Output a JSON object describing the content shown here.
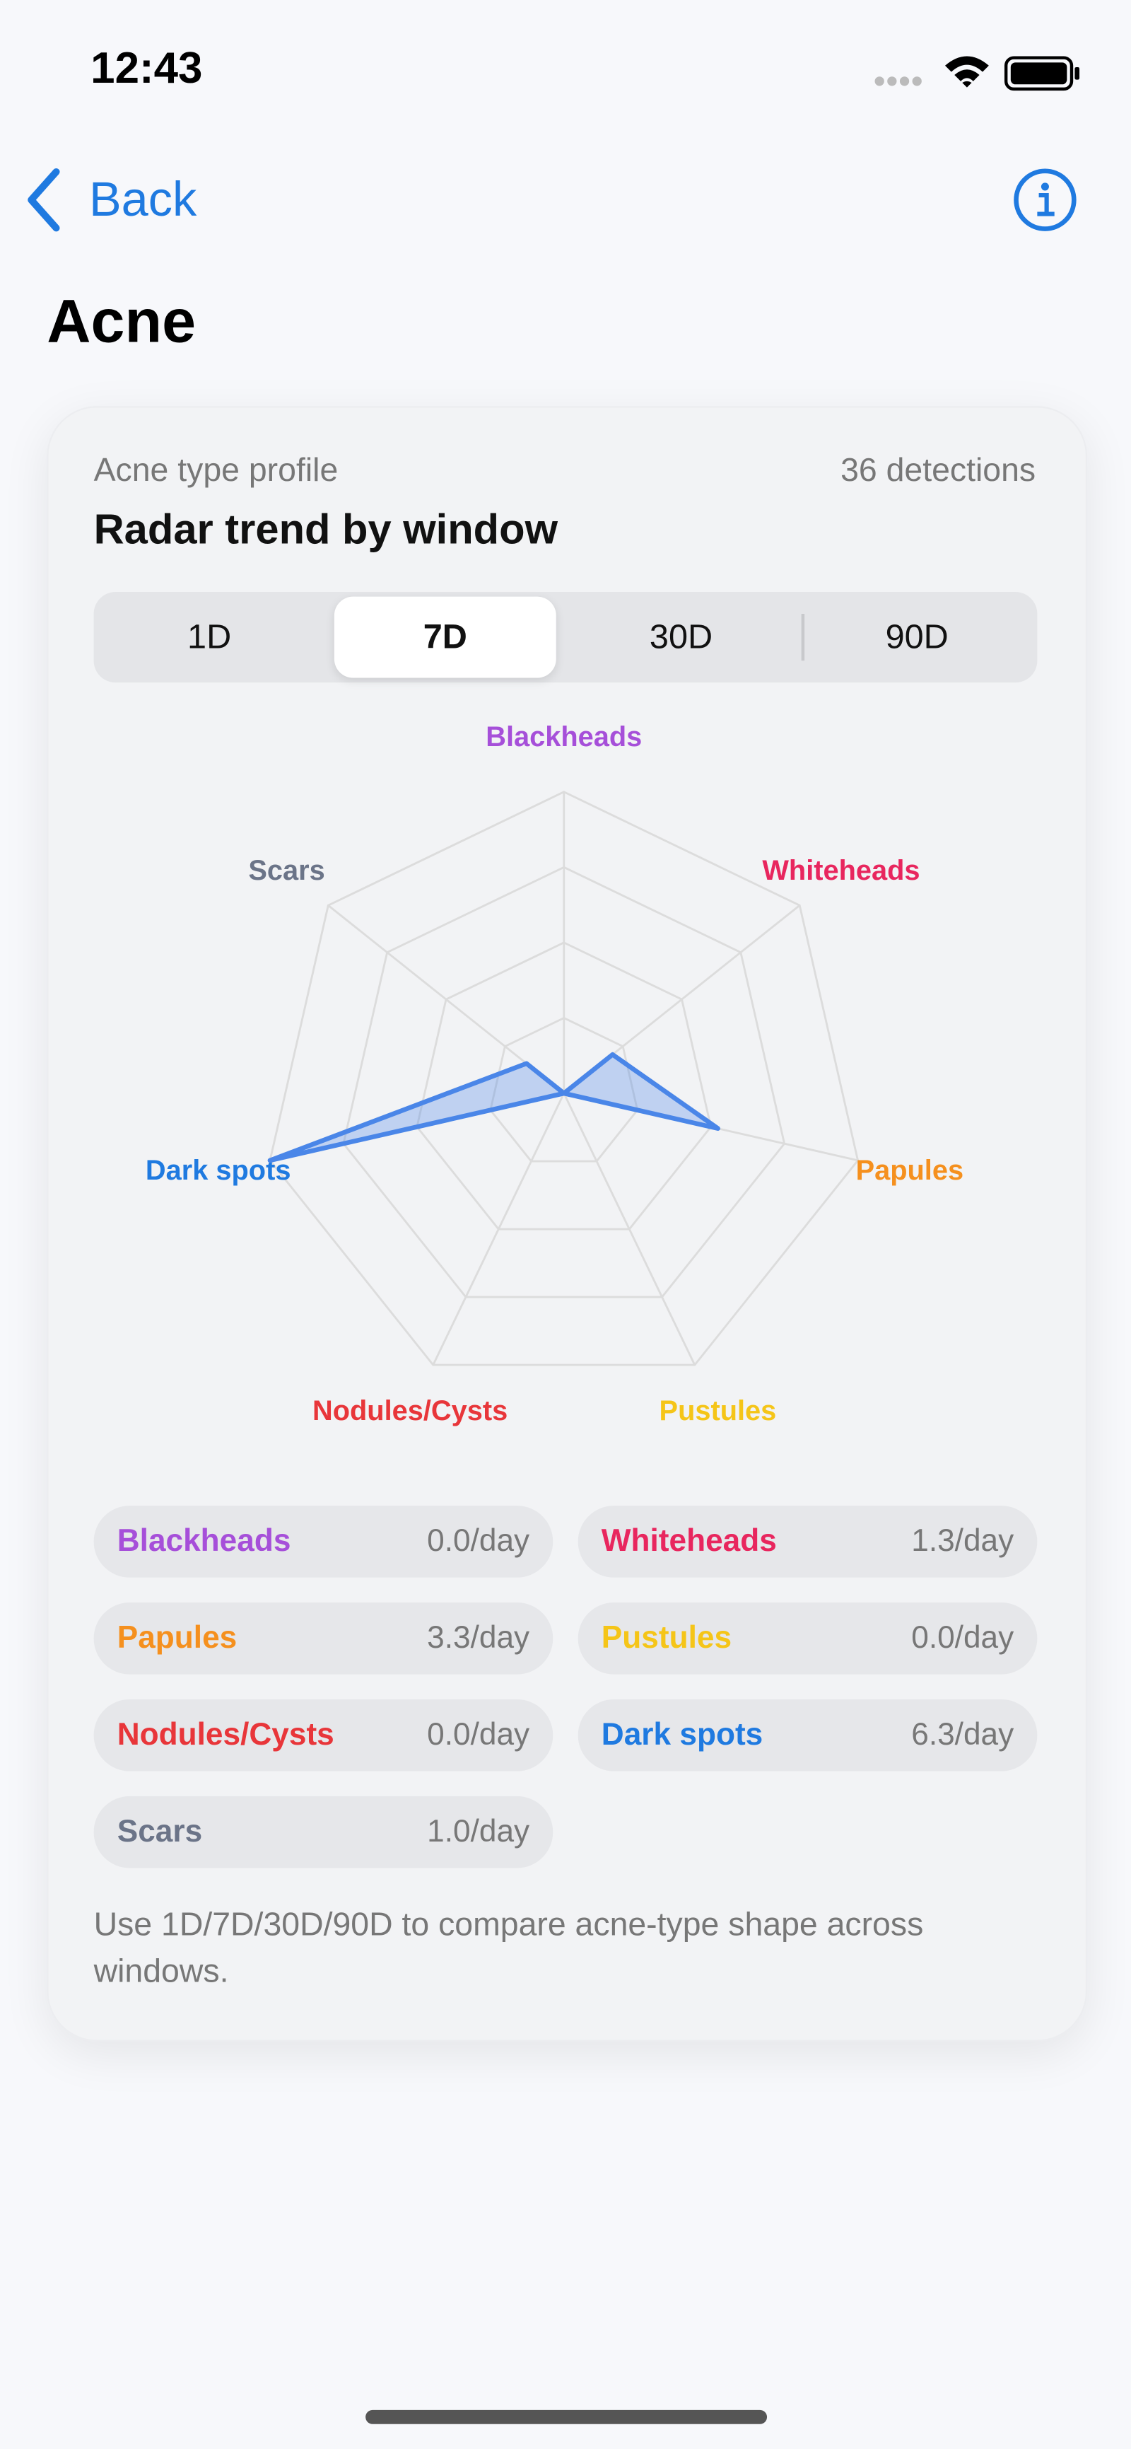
{
  "status": {
    "time": "12:43"
  },
  "nav": {
    "back": "Back"
  },
  "header": {
    "title": "Acne"
  },
  "card": {
    "subtitle": "Acne type profile",
    "count": "36 detections",
    "heading": "Radar trend by window",
    "segments": [
      "1D",
      "7D",
      "30D",
      "90D"
    ],
    "selected": 1,
    "footnote": "Use 1D/7D/30D/90D to compare acne-type shape across windows."
  },
  "chart_data": {
    "type": "radar",
    "categories": [
      "Blackheads",
      "Whiteheads",
      "Papules",
      "Pustules",
      "Nodules/Cysts",
      "Dark spots",
      "Scars"
    ],
    "category_colors": [
      "#a64fd9",
      "#e8265e",
      "#f5901e",
      "#f5c518",
      "#e8363a",
      "#1f7ae0",
      "#6b7488"
    ],
    "values": [
      0.0,
      1.3,
      3.3,
      0.0,
      0.0,
      6.3,
      1.0
    ],
    "value_labels": [
      "0.0/day",
      "1.3/day",
      "3.3/day",
      "0.0/day",
      "0.0/day",
      "6.3/day",
      "1.0/day"
    ],
    "color": "#4a86e8",
    "rlim": [
      0,
      6.3
    ]
  }
}
